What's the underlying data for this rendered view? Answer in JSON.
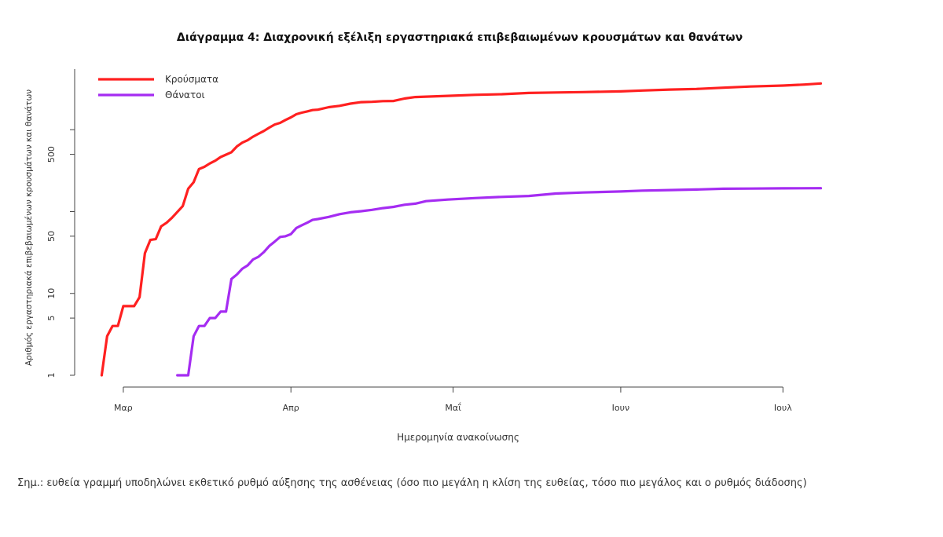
{
  "chart_data": {
    "type": "line",
    "title": "Διάγραμμα 4: Διαχρονική εξέλιξη εργαστηριακά επιβεβαιωμένων κρουσμάτων και θανάτων",
    "xlabel": "Ημερομηνία ανακοίνωσης",
    "ylabel": "Αριθμός εργαστηριακά επιβεβαιωμένων κρουσμάτων και θανάτων",
    "yscale": "log",
    "ylim": [
      1,
      5500
    ],
    "xlim": [
      "2020-02-21",
      "2020-07-12"
    ],
    "x_ticks": [
      {
        "date": "2020-03-01",
        "label": "Μαρ"
      },
      {
        "date": "2020-04-01",
        "label": "Απρ"
      },
      {
        "date": "2020-05-01",
        "label": "Μαΐ"
      },
      {
        "date": "2020-06-01",
        "label": "Ιουν"
      },
      {
        "date": "2020-07-01",
        "label": "Ιουλ"
      }
    ],
    "y_ticks": [
      {
        "value": 1,
        "label": "1"
      },
      {
        "value": 5,
        "label": "5"
      },
      {
        "value": 10,
        "label": "10"
      },
      {
        "value": 50,
        "label": "50"
      },
      {
        "value": 100,
        "label": ""
      },
      {
        "value": 500,
        "label": "500"
      },
      {
        "value": 1000,
        "label": ""
      }
    ],
    "grid": false,
    "legend_position": "top-left",
    "series": [
      {
        "name": "Κρούσματα",
        "color": "#ff2020",
        "points": [
          {
            "x": "2020-02-26",
            "y": 1
          },
          {
            "x": "2020-02-27",
            "y": 3
          },
          {
            "x": "2020-02-28",
            "y": 4
          },
          {
            "x": "2020-02-29",
            "y": 4
          },
          {
            "x": "2020-03-01",
            "y": 7
          },
          {
            "x": "2020-03-02",
            "y": 7
          },
          {
            "x": "2020-03-03",
            "y": 7
          },
          {
            "x": "2020-03-04",
            "y": 9
          },
          {
            "x": "2020-03-05",
            "y": 31
          },
          {
            "x": "2020-03-06",
            "y": 45
          },
          {
            "x": "2020-03-07",
            "y": 46
          },
          {
            "x": "2020-03-08",
            "y": 66
          },
          {
            "x": "2020-03-09",
            "y": 73
          },
          {
            "x": "2020-03-10",
            "y": 84
          },
          {
            "x": "2020-03-11",
            "y": 99
          },
          {
            "x": "2020-03-12",
            "y": 117
          },
          {
            "x": "2020-03-13",
            "y": 190
          },
          {
            "x": "2020-03-14",
            "y": 228
          },
          {
            "x": "2020-03-15",
            "y": 331
          },
          {
            "x": "2020-03-16",
            "y": 352
          },
          {
            "x": "2020-03-17",
            "y": 387
          },
          {
            "x": "2020-03-18",
            "y": 418
          },
          {
            "x": "2020-03-19",
            "y": 464
          },
          {
            "x": "2020-03-20",
            "y": 495
          },
          {
            "x": "2020-03-21",
            "y": 530
          },
          {
            "x": "2020-03-22",
            "y": 624
          },
          {
            "x": "2020-03-23",
            "y": 695
          },
          {
            "x": "2020-03-24",
            "y": 743
          },
          {
            "x": "2020-03-25",
            "y": 821
          },
          {
            "x": "2020-03-26",
            "y": 892
          },
          {
            "x": "2020-03-27",
            "y": 966
          },
          {
            "x": "2020-03-28",
            "y": 1061
          },
          {
            "x": "2020-03-29",
            "y": 1156
          },
          {
            "x": "2020-03-30",
            "y": 1212
          },
          {
            "x": "2020-03-31",
            "y": 1314
          },
          {
            "x": "2020-04-01",
            "y": 1415
          },
          {
            "x": "2020-04-02",
            "y": 1544
          },
          {
            "x": "2020-04-03",
            "y": 1613
          },
          {
            "x": "2020-04-04",
            "y": 1673
          },
          {
            "x": "2020-04-05",
            "y": 1735
          },
          {
            "x": "2020-04-06",
            "y": 1755
          },
          {
            "x": "2020-04-08",
            "y": 1884
          },
          {
            "x": "2020-04-10",
            "y": 1955
          },
          {
            "x": "2020-04-12",
            "y": 2081
          },
          {
            "x": "2020-04-14",
            "y": 2170
          },
          {
            "x": "2020-04-16",
            "y": 2192
          },
          {
            "x": "2020-04-18",
            "y": 2235
          },
          {
            "x": "2020-04-20",
            "y": 2245
          },
          {
            "x": "2020-04-22",
            "y": 2401
          },
          {
            "x": "2020-04-24",
            "y": 2506
          },
          {
            "x": "2020-04-26",
            "y": 2534
          },
          {
            "x": "2020-04-30",
            "y": 2591
          },
          {
            "x": "2020-05-05",
            "y": 2663
          },
          {
            "x": "2020-05-10",
            "y": 2716
          },
          {
            "x": "2020-05-15",
            "y": 2810
          },
          {
            "x": "2020-05-20",
            "y": 2850
          },
          {
            "x": "2020-05-25",
            "y": 2880
          },
          {
            "x": "2020-06-01",
            "y": 2937
          },
          {
            "x": "2020-06-05",
            "y": 3008
          },
          {
            "x": "2020-06-10",
            "y": 3089
          },
          {
            "x": "2020-06-15",
            "y": 3148
          },
          {
            "x": "2020-06-20",
            "y": 3256
          },
          {
            "x": "2020-06-25",
            "y": 3366
          },
          {
            "x": "2020-07-01",
            "y": 3458
          },
          {
            "x": "2020-07-05",
            "y": 3562
          },
          {
            "x": "2020-07-08",
            "y": 3672
          }
        ]
      },
      {
        "name": "Θάνατοι",
        "color": "#a52cf2",
        "points": [
          {
            "x": "2020-03-11",
            "y": 1
          },
          {
            "x": "2020-03-12",
            "y": 1
          },
          {
            "x": "2020-03-13",
            "y": 1
          },
          {
            "x": "2020-03-14",
            "y": 3
          },
          {
            "x": "2020-03-15",
            "y": 4
          },
          {
            "x": "2020-03-16",
            "y": 4
          },
          {
            "x": "2020-03-17",
            "y": 5
          },
          {
            "x": "2020-03-18",
            "y": 5
          },
          {
            "x": "2020-03-19",
            "y": 6
          },
          {
            "x": "2020-03-20",
            "y": 6
          },
          {
            "x": "2020-03-21",
            "y": 15
          },
          {
            "x": "2020-03-22",
            "y": 17
          },
          {
            "x": "2020-03-23",
            "y": 20
          },
          {
            "x": "2020-03-24",
            "y": 22
          },
          {
            "x": "2020-03-25",
            "y": 26
          },
          {
            "x": "2020-03-26",
            "y": 28
          },
          {
            "x": "2020-03-27",
            "y": 32
          },
          {
            "x": "2020-03-28",
            "y": 38
          },
          {
            "x": "2020-03-29",
            "y": 43
          },
          {
            "x": "2020-03-30",
            "y": 49
          },
          {
            "x": "2020-03-31",
            "y": 50
          },
          {
            "x": "2020-04-01",
            "y": 53
          },
          {
            "x": "2020-04-02",
            "y": 63
          },
          {
            "x": "2020-04-03",
            "y": 68
          },
          {
            "x": "2020-04-04",
            "y": 73
          },
          {
            "x": "2020-04-05",
            "y": 79
          },
          {
            "x": "2020-04-06",
            "y": 81
          },
          {
            "x": "2020-04-08",
            "y": 86
          },
          {
            "x": "2020-04-10",
            "y": 93
          },
          {
            "x": "2020-04-12",
            "y": 98
          },
          {
            "x": "2020-04-14",
            "y": 101
          },
          {
            "x": "2020-04-16",
            "y": 105
          },
          {
            "x": "2020-04-18",
            "y": 110
          },
          {
            "x": "2020-04-20",
            "y": 114
          },
          {
            "x": "2020-04-22",
            "y": 121
          },
          {
            "x": "2020-04-24",
            "y": 125
          },
          {
            "x": "2020-04-26",
            "y": 134
          },
          {
            "x": "2020-04-30",
            "y": 140
          },
          {
            "x": "2020-05-05",
            "y": 146
          },
          {
            "x": "2020-05-10",
            "y": 151
          },
          {
            "x": "2020-05-15",
            "y": 155
          },
          {
            "x": "2020-05-20",
            "y": 166
          },
          {
            "x": "2020-05-25",
            "y": 171
          },
          {
            "x": "2020-06-01",
            "y": 176
          },
          {
            "x": "2020-06-05",
            "y": 180
          },
          {
            "x": "2020-06-10",
            "y": 183
          },
          {
            "x": "2020-06-15",
            "y": 186
          },
          {
            "x": "2020-06-20",
            "y": 190
          },
          {
            "x": "2020-06-25",
            "y": 191
          },
          {
            "x": "2020-07-01",
            "y": 192
          },
          {
            "x": "2020-07-08",
            "y": 193
          }
        ]
      }
    ]
  },
  "footnote": "Σημ.: ευθεία γραμμή υποδηλώνει εκθετικό ρυθμό αύξησης της ασθένειας (όσο πιο μεγάλη η κλίση της ευθείας, τόσο πιο μεγάλος και ο ρυθμός διάδοσης)"
}
